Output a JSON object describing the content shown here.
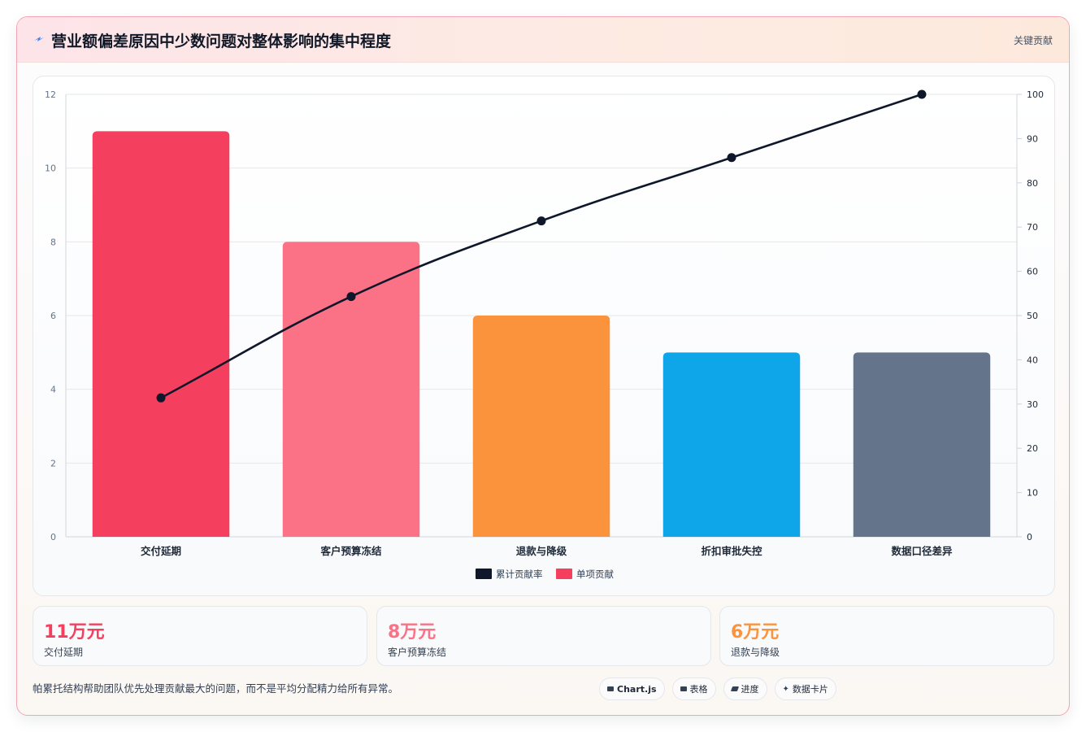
{
  "header": {
    "title": "营业额偏差原因中少数问题对整体影响的集中程度",
    "badge": "关键贡献",
    "icon": "lightning-icon"
  },
  "chart_data": {
    "type": "bar",
    "categories": [
      "交付延期",
      "客户预算冻结",
      "退款与降级",
      "折扣审批失控",
      "数据口径差异"
    ],
    "series": [
      {
        "name": "单项贡献",
        "type": "bar",
        "axis": "left",
        "values": [
          11,
          8,
          6,
          5,
          5
        ],
        "colors": [
          "#f43f5e",
          "#fb7185",
          "#fb923c",
          "#0ea5e9",
          "#64748b"
        ]
      },
      {
        "name": "累计贡献率",
        "type": "line",
        "axis": "right",
        "values": [
          31.4,
          54.3,
          71.4,
          85.7,
          100
        ],
        "color": "#0f172a"
      }
    ],
    "y_left": {
      "min": 0,
      "max": 12,
      "ticks": [
        0,
        2,
        4,
        6,
        8,
        10,
        12
      ]
    },
    "y_right": {
      "min": 0,
      "max": 100,
      "ticks": [
        0,
        10,
        20,
        30,
        40,
        50,
        60,
        70,
        80,
        90,
        100
      ]
    },
    "legend": {
      "position": "bottom",
      "items": [
        {
          "label": "累计贡献率",
          "color": "#0f172a"
        },
        {
          "label": "单项贡献",
          "color": "#f43f5e"
        }
      ]
    },
    "grid": true
  },
  "kpis": [
    {
      "value": "11万元",
      "label": "交付延期",
      "color": "#f43f5e"
    },
    {
      "value": "8万元",
      "label": "客户预算冻结",
      "color": "#fb7185"
    },
    {
      "value": "6万元",
      "label": "退款与降级",
      "color": "#fb923c"
    }
  ],
  "footer": {
    "note": "帕累托结构帮助团队优先处理贡献最大的问题，而不是平均分配精力给所有异常。",
    "chips": [
      {
        "label": "Chart.js",
        "icon": "chart-icon"
      },
      {
        "label": "表格",
        "icon": "table-icon"
      },
      {
        "label": "进度",
        "icon": "progress-icon"
      },
      {
        "label": "数据卡片",
        "icon": "sparkle-icon"
      }
    ]
  }
}
